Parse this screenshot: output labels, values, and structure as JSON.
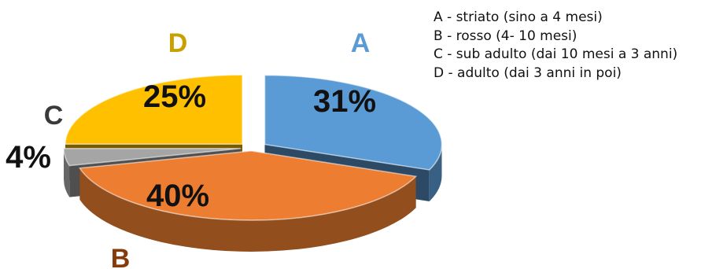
{
  "chart_data": {
    "type": "pie",
    "style": "3d-exploded",
    "slices": [
      {
        "letter": "A",
        "label": "A - striato (sino a 4 mesi)",
        "value": 31,
        "value_label": "31%",
        "color": "#5b9bd5"
      },
      {
        "letter": "B",
        "label": "B - rosso (4- 10 mesi)",
        "value": 40,
        "value_label": "40%",
        "color": "#ed7d31"
      },
      {
        "letter": "C",
        "label": "C - sub adulto (dai 10 mesi a 3 anni)",
        "value": 4,
        "value_label": "4%",
        "color": "#a5a5a5"
      },
      {
        "letter": "D",
        "label": "D - adulto (dai 3 anni in poi)",
        "value": 25,
        "value_label": "25%",
        "color": "#ffc000"
      }
    ],
    "legend_position": "top-right"
  }
}
